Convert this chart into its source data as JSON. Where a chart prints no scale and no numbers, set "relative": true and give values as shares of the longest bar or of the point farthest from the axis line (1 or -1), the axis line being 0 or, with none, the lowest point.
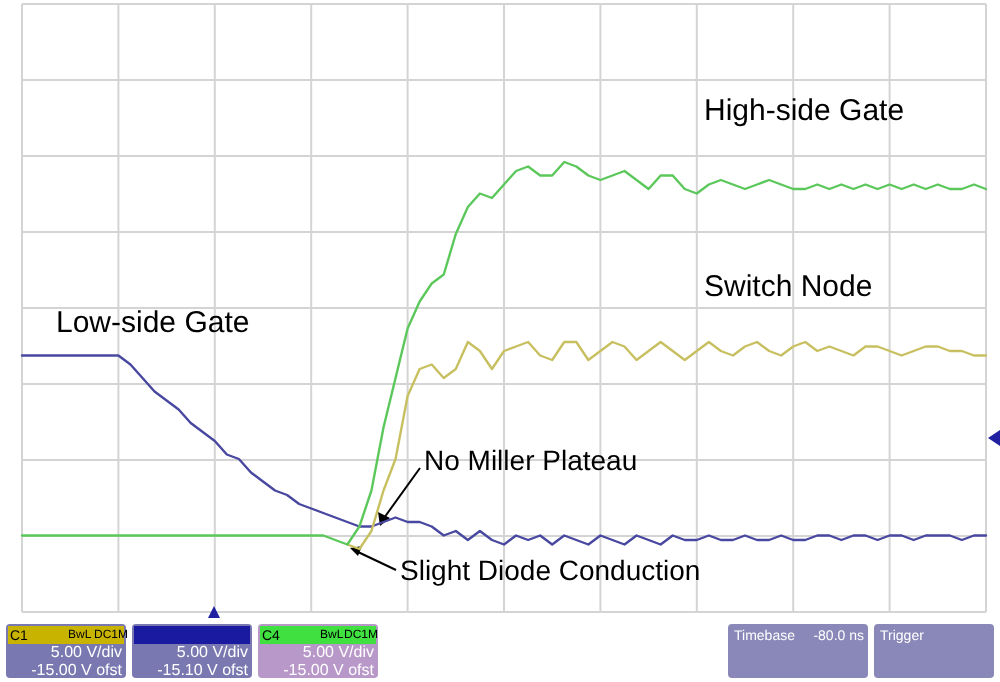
{
  "chart_data": {
    "type": "line",
    "relative": true,
    "grid": true,
    "categories": [
      null,
      null,
      null,
      null,
      null,
      null,
      null,
      null,
      null,
      null,
      null,
      null,
      null,
      null,
      null,
      null,
      null,
      null,
      null,
      null,
      null,
      null,
      null,
      null,
      null,
      null,
      null,
      null,
      null,
      null,
      null,
      null,
      null,
      null,
      null,
      null,
      null,
      null,
      null,
      null,
      null,
      null,
      null,
      null,
      null,
      null,
      null,
      null,
      null,
      null,
      null,
      null,
      null,
      null,
      null,
      null,
      null,
      null,
      null,
      null,
      null,
      null,
      null,
      null,
      null,
      null,
      null,
      null,
      null,
      null,
      null,
      null,
      null,
      null,
      null,
      null,
      null,
      null,
      null,
      null,
      null
    ],
    "series": [
      {
        "name": "High-side Gate",
        "color": "#5cc85c",
        "values": [
          0.17,
          0.17,
          0.17,
          0.17,
          0.17,
          0.17,
          0.17,
          0.17,
          0.17,
          0.17,
          0.17,
          0.17,
          0.17,
          0.17,
          0.17,
          0.17,
          0.17,
          0.17,
          0.17,
          0.17,
          0.17,
          0.17,
          0.17,
          0.17,
          0.17,
          0.17,
          0.16,
          0.15,
          0.19,
          0.27,
          0.41,
          0.52,
          0.63,
          0.69,
          0.73,
          0.75,
          0.84,
          0.9,
          0.93,
          0.92,
          0.95,
          0.98,
          0.99,
          0.97,
          0.97,
          1.0,
          0.99,
          0.97,
          0.96,
          0.97,
          0.98,
          0.96,
          0.94,
          0.97,
          0.97,
          0.94,
          0.93,
          0.95,
          0.96,
          0.95,
          0.94,
          0.95,
          0.96,
          0.95,
          0.94,
          0.94,
          0.95,
          0.94,
          0.95,
          0.94,
          0.95,
          0.94,
          0.95,
          0.94,
          0.95,
          0.94,
          0.95,
          0.94,
          0.94,
          0.95,
          0.94
        ]
      },
      {
        "name": "Switch Node",
        "color": "#c8c060",
        "values": [
          null,
          null,
          null,
          null,
          null,
          null,
          null,
          null,
          null,
          null,
          null,
          null,
          null,
          null,
          null,
          null,
          null,
          null,
          null,
          null,
          null,
          null,
          null,
          null,
          null,
          null,
          null,
          0.15,
          0.14,
          0.18,
          0.27,
          0.34,
          0.48,
          0.54,
          0.55,
          0.52,
          0.54,
          0.6,
          0.58,
          0.54,
          0.58,
          0.59,
          0.6,
          0.57,
          0.56,
          0.6,
          0.6,
          0.56,
          0.58,
          0.6,
          0.59,
          0.56,
          0.58,
          0.6,
          0.58,
          0.56,
          0.58,
          0.6,
          0.58,
          0.57,
          0.59,
          0.6,
          0.58,
          0.57,
          0.59,
          0.6,
          0.58,
          0.59,
          0.58,
          0.57,
          0.59,
          0.59,
          0.58,
          0.57,
          0.58,
          0.59,
          0.59,
          0.58,
          0.58,
          0.57,
          0.57
        ]
      },
      {
        "name": "Low-side Gate",
        "color": "#4848a0",
        "values": [
          0.57,
          0.57,
          0.57,
          0.57,
          0.57,
          0.57,
          0.57,
          0.57,
          0.57,
          0.55,
          0.52,
          0.49,
          0.47,
          0.45,
          0.42,
          0.4,
          0.38,
          0.35,
          0.34,
          0.31,
          0.29,
          0.27,
          0.26,
          0.24,
          0.23,
          0.22,
          0.21,
          0.2,
          0.19,
          0.19,
          0.2,
          0.21,
          0.2,
          0.2,
          0.19,
          0.17,
          0.18,
          0.16,
          0.18,
          0.16,
          0.15,
          0.17,
          0.16,
          0.17,
          0.15,
          0.17,
          0.16,
          0.15,
          0.17,
          0.16,
          0.15,
          0.17,
          0.16,
          0.15,
          0.17,
          0.16,
          0.16,
          0.17,
          0.16,
          0.16,
          0.17,
          0.16,
          0.16,
          0.17,
          0.16,
          0.16,
          0.17,
          0.17,
          0.16,
          0.17,
          0.17,
          0.16,
          0.17,
          0.17,
          0.16,
          0.17,
          0.17,
          0.17,
          0.16,
          0.17,
          0.17
        ]
      }
    ],
    "annotations": [
      "No Miller Plateau",
      "Slight Diode Conduction",
      "C1",
      "BwL",
      "DC1M",
      "5.00 V/div",
      "-15.00 V ofst",
      "5.00 V/div",
      "-15.10 V ofst",
      "C4",
      "BwL",
      "DC1M",
      "5.00 V/div",
      "-15.00 V ofst",
      "Timebase",
      "-80.0 ns",
      "Trigger"
    ]
  }
}
